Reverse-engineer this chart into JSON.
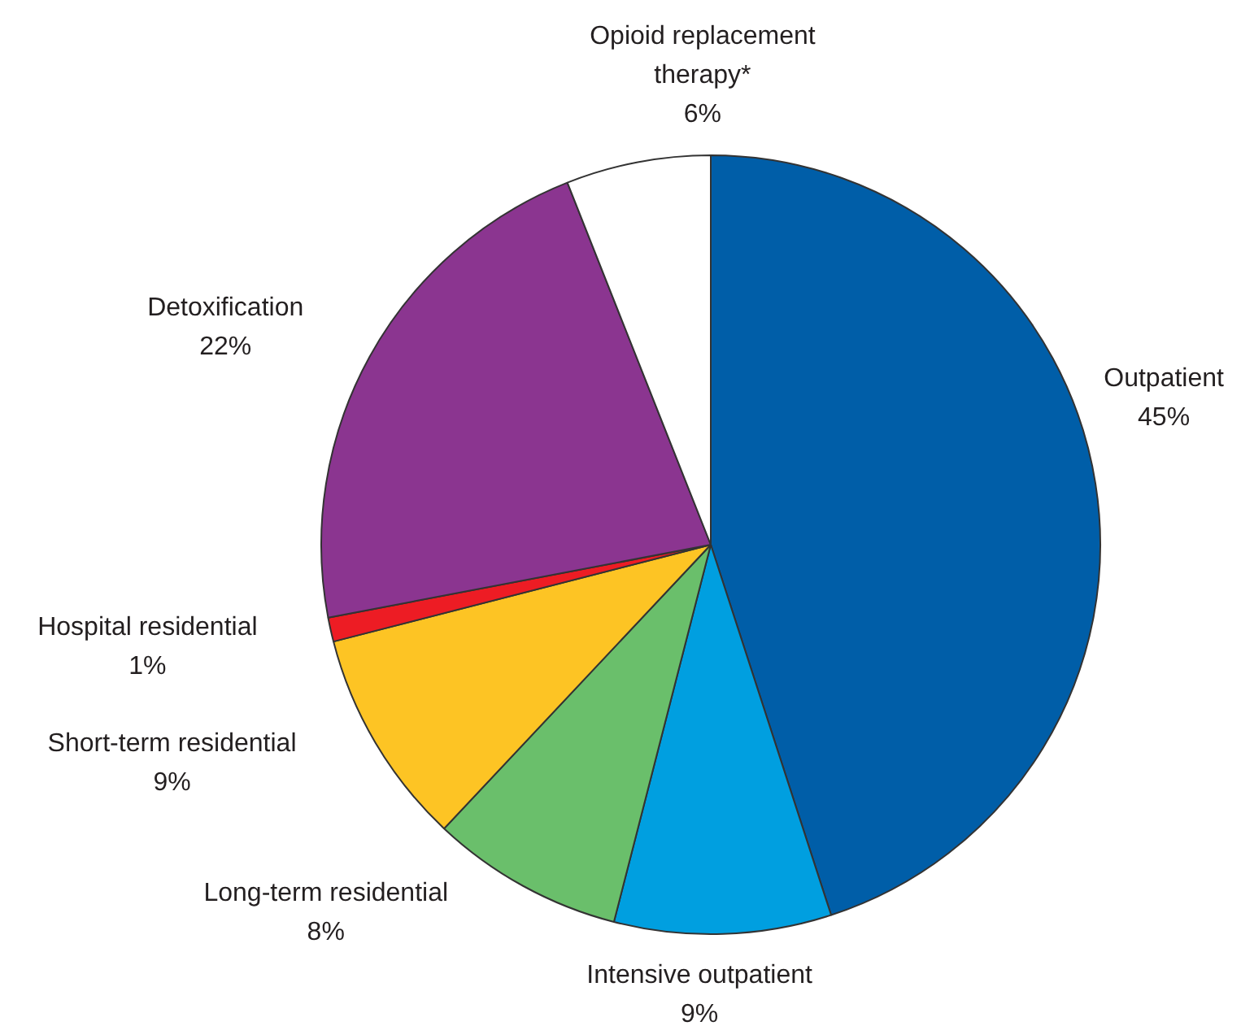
{
  "chart_data": {
    "type": "pie",
    "categories": [
      "Outpatient",
      "Intensive outpatient",
      "Long-term residential",
      "Short-term residential",
      "Hospital residential",
      "Detoxification",
      "Opioid replacement therapy*"
    ],
    "values": [
      45,
      9,
      8,
      9,
      1,
      22,
      6
    ],
    "colors": [
      "#005ea8",
      "#009fe0",
      "#6abf6b",
      "#fdc424",
      "#ed1c24",
      "#8b3590",
      "#ffffff"
    ],
    "value_labels": [
      "45%",
      "9%",
      "8%",
      "9%",
      "1%",
      "22%",
      "6%"
    ]
  }
}
